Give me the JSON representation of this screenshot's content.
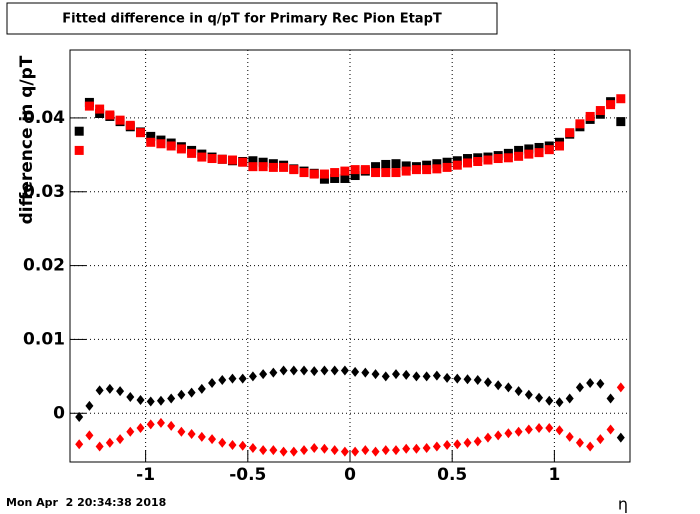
{
  "chart_data": {
    "type": "scatter",
    "title": "Fitted difference in q/pT for Primary Rec Pion EtapT",
    "y_label": "difference in q/pT",
    "x_label": "η",
    "timestamp": "Mon Apr  2 20:34:38 2018",
    "x": [
      -1.325,
      -1.275,
      -1.225,
      -1.175,
      -1.125,
      -1.075,
      -1.025,
      -0.975,
      -0.925,
      -0.875,
      -0.825,
      -0.775,
      -0.725,
      -0.675,
      -0.625,
      -0.575,
      -0.525,
      -0.475,
      -0.425,
      -0.375,
      -0.325,
      -0.275,
      -0.225,
      -0.175,
      -0.125,
      -0.075,
      -0.025,
      0.025,
      0.075,
      0.125,
      0.175,
      0.225,
      0.275,
      0.325,
      0.375,
      0.425,
      0.475,
      0.525,
      0.575,
      0.625,
      0.675,
      0.725,
      0.775,
      0.825,
      0.875,
      0.925,
      0.975,
      1.025,
      1.075,
      1.125,
      1.175,
      1.225,
      1.275,
      1.325
    ],
    "series": [
      {
        "color": "#000000",
        "marker": "square",
        "values": [
          0.0382,
          0.0421,
          0.0406,
          0.0402,
          0.0395,
          0.0388,
          0.0381,
          0.0375,
          0.037,
          0.0366,
          0.0361,
          0.0356,
          0.0351,
          0.0347,
          0.0344,
          0.0342,
          0.0341,
          0.0342,
          0.034,
          0.0338,
          0.0336,
          0.0331,
          0.0328,
          0.0325,
          0.0317,
          0.0318,
          0.0318,
          0.0322,
          0.0328,
          0.0334,
          0.0337,
          0.0338,
          0.0335,
          0.0334,
          0.0336,
          0.0338,
          0.034,
          0.0342,
          0.0345,
          0.0346,
          0.0347,
          0.0349,
          0.0352,
          0.0356,
          0.0358,
          0.036,
          0.0362,
          0.0367,
          0.0378,
          0.0388,
          0.0398,
          0.0405,
          0.0422,
          0.0395
        ]
      },
      {
        "color": "#ff0000",
        "marker": "square",
        "values": [
          0.0356,
          0.0416,
          0.0412,
          0.0404,
          0.0397,
          0.039,
          0.038,
          0.0367,
          0.0365,
          0.0362,
          0.0358,
          0.0352,
          0.0347,
          0.0345,
          0.0344,
          0.0343,
          0.034,
          0.0334,
          0.0334,
          0.0333,
          0.0333,
          0.033,
          0.0326,
          0.0324,
          0.0324,
          0.0326,
          0.0328,
          0.033,
          0.033,
          0.0326,
          0.0326,
          0.0326,
          0.0328,
          0.033,
          0.033,
          0.0331,
          0.0333,
          0.0336,
          0.0339,
          0.0341,
          0.0343,
          0.0345,
          0.0346,
          0.0348,
          0.0351,
          0.0353,
          0.0357,
          0.0362,
          0.038,
          0.0392,
          0.0402,
          0.041,
          0.0418,
          0.0426
        ]
      },
      {
        "color": "#000000",
        "marker": "diamond",
        "values": [
          -0.0005,
          0.001,
          0.0031,
          0.0033,
          0.003,
          0.0022,
          0.0018,
          0.0016,
          0.0017,
          0.002,
          0.0025,
          0.0028,
          0.0033,
          0.0041,
          0.0045,
          0.0047,
          0.0047,
          0.005,
          0.0053,
          0.0055,
          0.0058,
          0.0058,
          0.0058,
          0.0057,
          0.0058,
          0.0058,
          0.0058,
          0.0056,
          0.0055,
          0.0053,
          0.005,
          0.0053,
          0.0052,
          0.005,
          0.005,
          0.0051,
          0.0048,
          0.0047,
          0.0046,
          0.0045,
          0.0042,
          0.0038,
          0.0035,
          0.003,
          0.0025,
          0.0021,
          0.0017,
          0.0015,
          0.002,
          0.0035,
          0.0041,
          0.004,
          0.002,
          -0.0033
        ]
      },
      {
        "color": "#ff0000",
        "marker": "diamond",
        "values": [
          -0.0042,
          -0.003,
          -0.0045,
          -0.004,
          -0.0035,
          -0.0025,
          -0.002,
          -0.0015,
          -0.0013,
          -0.0017,
          -0.0025,
          -0.0028,
          -0.0032,
          -0.0035,
          -0.004,
          -0.0043,
          -0.0044,
          -0.0047,
          -0.005,
          -0.005,
          -0.0052,
          -0.0052,
          -0.005,
          -0.0047,
          -0.0048,
          -0.005,
          -0.0052,
          -0.0052,
          -0.005,
          -0.0052,
          -0.005,
          -0.005,
          -0.0048,
          -0.0048,
          -0.0047,
          -0.0045,
          -0.0043,
          -0.0042,
          -0.004,
          -0.0038,
          -0.0033,
          -0.003,
          -0.0027,
          -0.0025,
          -0.0022,
          -0.002,
          -0.002,
          -0.0023,
          -0.0032,
          -0.004,
          -0.0045,
          -0.0035,
          -0.0022,
          0.0035
        ]
      }
    ],
    "xlim": [
      -1.37,
      1.37
    ],
    "ylim": [
      -0.0066,
      0.0492
    ],
    "xticks": [
      -1,
      -0.5,
      0,
      0.5,
      1
    ],
    "yticks": [
      0,
      0.01,
      0.02,
      0.03,
      0.04
    ],
    "grid": true
  }
}
